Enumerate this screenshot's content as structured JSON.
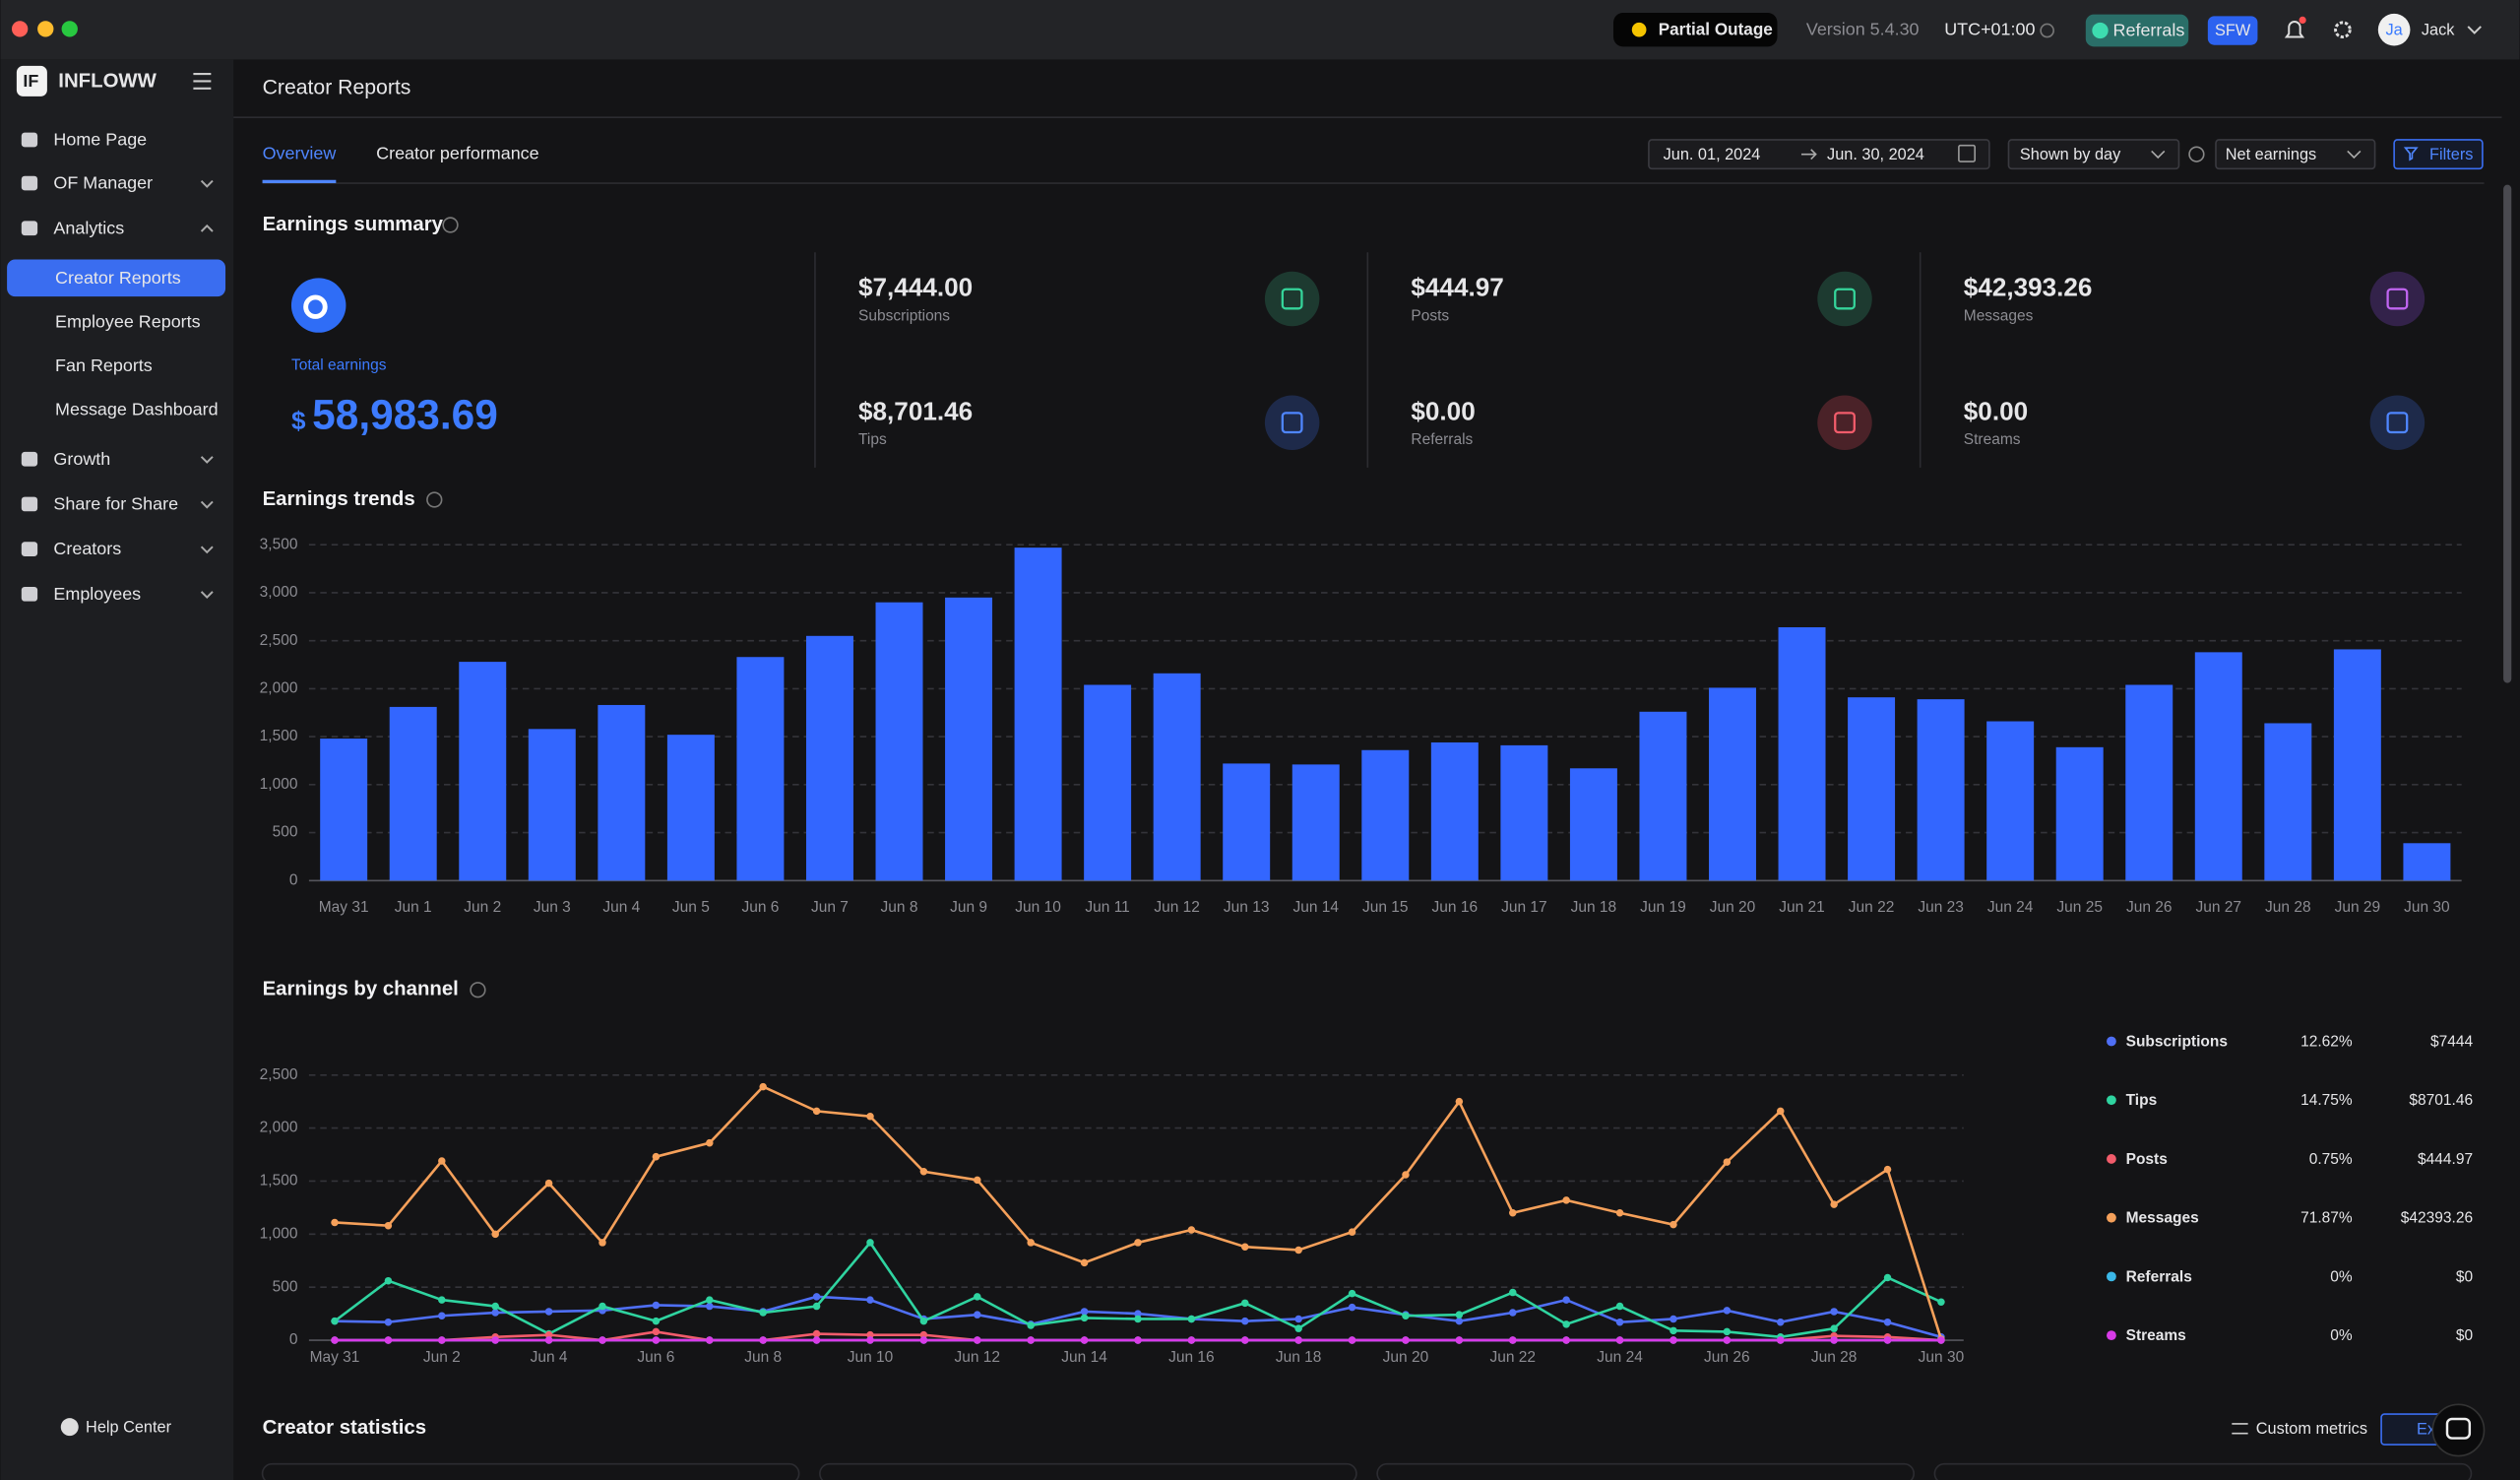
{
  "window": {
    "status": "Partial Outage",
    "version": "Version 5.4.30",
    "timezone": "UTC+01:00",
    "referrals": "Referrals",
    "sfw": "SFW",
    "avatar": "Ja",
    "user": "Jack"
  },
  "sidebar": {
    "brand": "INFLOWW",
    "menu": [
      "Home Page",
      "OF Manager",
      "Analytics",
      "Growth",
      "Share for Share",
      "Creators",
      "Employees"
    ],
    "expanded_menu": 2,
    "submenu": [
      "Creator Reports",
      "Employee Reports",
      "Fan Reports",
      "Message Dashboard"
    ],
    "active_submenu": 0,
    "help": "Help Center"
  },
  "header": {
    "title": "Creator Reports",
    "tabs": [
      "Overview",
      "Creator performance"
    ],
    "active_tab": 0,
    "date_from": "Jun. 01, 2024",
    "date_to": "Jun. 30, 2024",
    "grouping": "Shown by day",
    "metric": "Net earnings",
    "filters": "Filters"
  },
  "summary": {
    "title": "Earnings summary",
    "total_label": "Total earnings",
    "currency": "$",
    "total": "58,983.69",
    "cards": [
      {
        "value": "$7,444.00",
        "label": "Subscriptions"
      },
      {
        "value": "$444.97",
        "label": "Posts"
      },
      {
        "value": "$42,393.26",
        "label": "Messages"
      },
      {
        "value": "$8,701.46",
        "label": "Tips"
      },
      {
        "value": "$0.00",
        "label": "Referrals"
      },
      {
        "value": "$0.00",
        "label": "Streams"
      }
    ]
  },
  "chart_data": [
    {
      "type": "bar",
      "title": "Earnings trends",
      "categories": [
        "May 31",
        "Jun 1",
        "Jun 2",
        "Jun 3",
        "Jun 4",
        "Jun 5",
        "Jun 6",
        "Jun 7",
        "Jun 8",
        "Jun 9",
        "Jun 10",
        "Jun 11",
        "Jun 12",
        "Jun 13",
        "Jun 14",
        "Jun 15",
        "Jun 16",
        "Jun 17",
        "Jun 18",
        "Jun 19",
        "Jun 20",
        "Jun 21",
        "Jun 22",
        "Jun 23",
        "Jun 24",
        "Jun 25",
        "Jun 26",
        "Jun 27",
        "Jun 28",
        "Jun 29",
        "Jun 30"
      ],
      "values": [
        1480,
        1810,
        2280,
        1580,
        1830,
        1520,
        2330,
        2550,
        2900,
        2950,
        3470,
        2040,
        2160,
        1220,
        1210,
        1360,
        1440,
        1410,
        1170,
        1760,
        2010,
        2640,
        1910,
        1890,
        1660,
        1390,
        2040,
        2380,
        1640,
        2410,
        390
      ],
      "color": "#3366ff",
      "ylim": [
        0,
        3500
      ],
      "yticks": [
        0,
        500,
        {
          "value": 1000,
          "label": "1,000"
        },
        {
          "value": 1500,
          "label": "1,500"
        },
        {
          "value": 2000,
          "label": "2,000"
        },
        {
          "value": 2500,
          "label": "2,500"
        },
        {
          "value": 3000,
          "label": "3,000"
        },
        {
          "value": 3500,
          "label": "3,500"
        }
      ],
      "grid": true
    },
    {
      "type": "line",
      "title": "Earnings by channel",
      "categories": [
        "May 31",
        null,
        "Jun 2",
        null,
        "Jun 4",
        null,
        "Jun 6",
        null,
        "Jun 8",
        null,
        "Jun 10",
        null,
        "Jun 12",
        null,
        "Jun 14",
        null,
        "Jun 16",
        null,
        "Jun 18",
        null,
        "Jun 20",
        null,
        "Jun 22",
        null,
        "Jun 24",
        null,
        "Jun 26",
        null,
        "Jun 28",
        null,
        "Jun 30"
      ],
      "series": [
        {
          "name": "Subscriptions",
          "color": "#4f6ff5",
          "share": "12.62%",
          "total": "$7444",
          "values": [
            180,
            170,
            230,
            260,
            270,
            280,
            330,
            320,
            270,
            410,
            380,
            200,
            240,
            150,
            270,
            250,
            200,
            180,
            200,
            310,
            240,
            180,
            260,
            380,
            170,
            200,
            280,
            170,
            270,
            170,
            30
          ]
        },
        {
          "name": "Tips",
          "color": "#2fd4a0",
          "share": "14.75%",
          "total": "$8701.46",
          "values": [
            180,
            560,
            380,
            320,
            60,
            320,
            180,
            380,
            260,
            320,
            920,
            180,
            410,
            140,
            210,
            200,
            200,
            350,
            110,
            440,
            230,
            240,
            450,
            150,
            320,
            90,
            80,
            30,
            110,
            590,
            360
          ]
        },
        {
          "name": "Posts",
          "color": "#f25c6b",
          "share": "0.75%",
          "total": "$444.97",
          "values": [
            0,
            0,
            0,
            30,
            50,
            0,
            80,
            0,
            0,
            60,
            50,
            50,
            0,
            0,
            0,
            0,
            0,
            0,
            0,
            0,
            0,
            0,
            0,
            0,
            0,
            0,
            0,
            0,
            40,
            30,
            0
          ]
        },
        {
          "name": "Messages",
          "color": "#f5a05a",
          "share": "71.87%",
          "total": "$42393.26",
          "values": [
            1110,
            1080,
            1690,
            1000,
            1480,
            920,
            1730,
            1860,
            2390,
            2160,
            2110,
            1590,
            1510,
            920,
            730,
            920,
            1040,
            880,
            850,
            1020,
            1560,
            2250,
            1200,
            1320,
            1200,
            1090,
            1680,
            2160,
            1280,
            1610,
            10
          ]
        },
        {
          "name": "Referrals",
          "color": "#3bb8e8",
          "share": "0%",
          "total": "$0",
          "values": [
            0,
            0,
            0,
            0,
            0,
            0,
            0,
            0,
            0,
            0,
            0,
            0,
            0,
            0,
            0,
            0,
            0,
            0,
            0,
            0,
            0,
            0,
            0,
            0,
            0,
            0,
            0,
            0,
            0,
            0,
            0
          ]
        },
        {
          "name": "Streams",
          "color": "#d83be8",
          "share": "0%",
          "total": "$0",
          "values": [
            0,
            0,
            0,
            0,
            0,
            0,
            0,
            0,
            0,
            0,
            0,
            0,
            0,
            0,
            0,
            0,
            0,
            0,
            0,
            0,
            0,
            0,
            0,
            0,
            0,
            0,
            0,
            0,
            0,
            0,
            0
          ]
        }
      ],
      "ylim": [
        0,
        2500
      ],
      "yticks": [
        0,
        500,
        {
          "value": 1000,
          "label": "1,000"
        },
        {
          "value": 1500,
          "label": "1,500"
        },
        {
          "value": 2000,
          "label": "2,000"
        },
        {
          "value": 2500,
          "label": "2,500"
        }
      ],
      "grid": true
    }
  ],
  "statistics": {
    "title": "Creator statistics",
    "custom_metrics": "Custom metrics",
    "export": "Export"
  }
}
